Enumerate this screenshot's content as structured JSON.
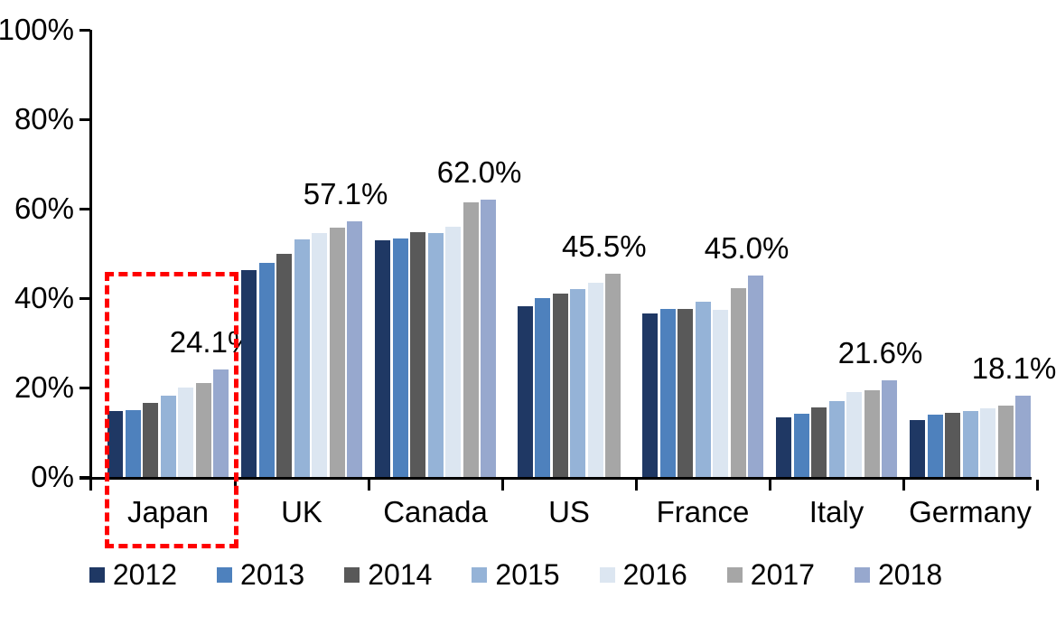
{
  "chart_data": {
    "type": "bar",
    "title": "",
    "xlabel": "",
    "ylabel": "",
    "categories": [
      "Japan",
      "UK",
      "Canada",
      "US",
      "France",
      "Italy",
      "Germany"
    ],
    "series": [
      {
        "name": "2012",
        "color": "#1F3864",
        "values": [
          14.8,
          46.3,
          52.9,
          38.2,
          36.5,
          13.4,
          12.7
        ]
      },
      {
        "name": "2013",
        "color": "#4E81BD",
        "values": [
          15.0,
          47.8,
          53.4,
          39.9,
          37.5,
          14.2,
          14.0
        ]
      },
      {
        "name": "2014",
        "color": "#595959",
        "values": [
          16.6,
          49.8,
          54.8,
          41.0,
          37.6,
          15.5,
          14.4
        ]
      },
      {
        "name": "2015",
        "color": "#95B3D7",
        "values": [
          18.2,
          53.2,
          54.6,
          42.0,
          39.2,
          17.0,
          14.8
        ]
      },
      {
        "name": "2016",
        "color": "#DCE6F1",
        "values": [
          19.9,
          54.5,
          56.0,
          43.5,
          37.3,
          18.9,
          15.4
        ]
      },
      {
        "name": "2017",
        "color": "#A6A6A6",
        "values": [
          21.0,
          55.7,
          61.5,
          45.5,
          42.3,
          19.3,
          15.9
        ]
      },
      {
        "name": "2018",
        "color": "#97A8CE",
        "values": [
          24.1,
          57.1,
          62.0,
          null,
          45.0,
          21.6,
          18.1
        ]
      }
    ],
    "data_labels": [
      "24.1%",
      "57.1%",
      "62.0%",
      "45.5%",
      "45.0%",
      "21.6%",
      "18.1%"
    ],
    "yticks": [
      "0%",
      "20%",
      "40%",
      "60%",
      "80%",
      "100%"
    ],
    "ylim": [
      0,
      100
    ],
    "grid": false,
    "legend_position": "bottom",
    "annotation": {
      "type": "dashed-box",
      "target": "Japan",
      "color": "#FF0000"
    },
    "text_color": "#000000",
    "axis_color": "#000000"
  }
}
